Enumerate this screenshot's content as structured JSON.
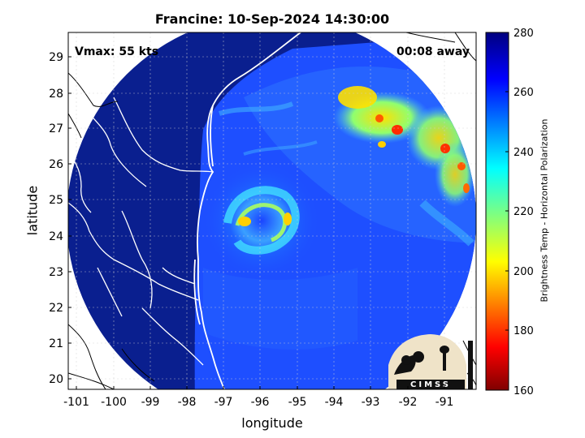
{
  "title": "Francine: 10-Sep-2024 14:30:00",
  "xlabel": "longitude",
  "ylabel": "latitude",
  "annotations": {
    "vmax": "Vmax: 55 kts",
    "time_away": "00:08 away"
  },
  "logo_text": "CIMSS",
  "colorbar": {
    "label": "Brightness Temp - Horizontal Polarization",
    "min": 160,
    "max": 280,
    "ticks": [
      "280",
      "260",
      "240",
      "220",
      "200",
      "180",
      "160"
    ]
  },
  "x_ticks": [
    "-101",
    "-100",
    "-99",
    "-98",
    "-97",
    "-96",
    "-95",
    "-94",
    "-93",
    "-92",
    "-91"
  ],
  "y_ticks": [
    "29",
    "28",
    "27",
    "26",
    "25",
    "24",
    "23",
    "22",
    "21",
    "20"
  ],
  "colors": {
    "background_cold": "#0a1f8f",
    "ocean": "#1e4fff",
    "warm": "#ffd400",
    "hot": "#ff3000"
  }
}
